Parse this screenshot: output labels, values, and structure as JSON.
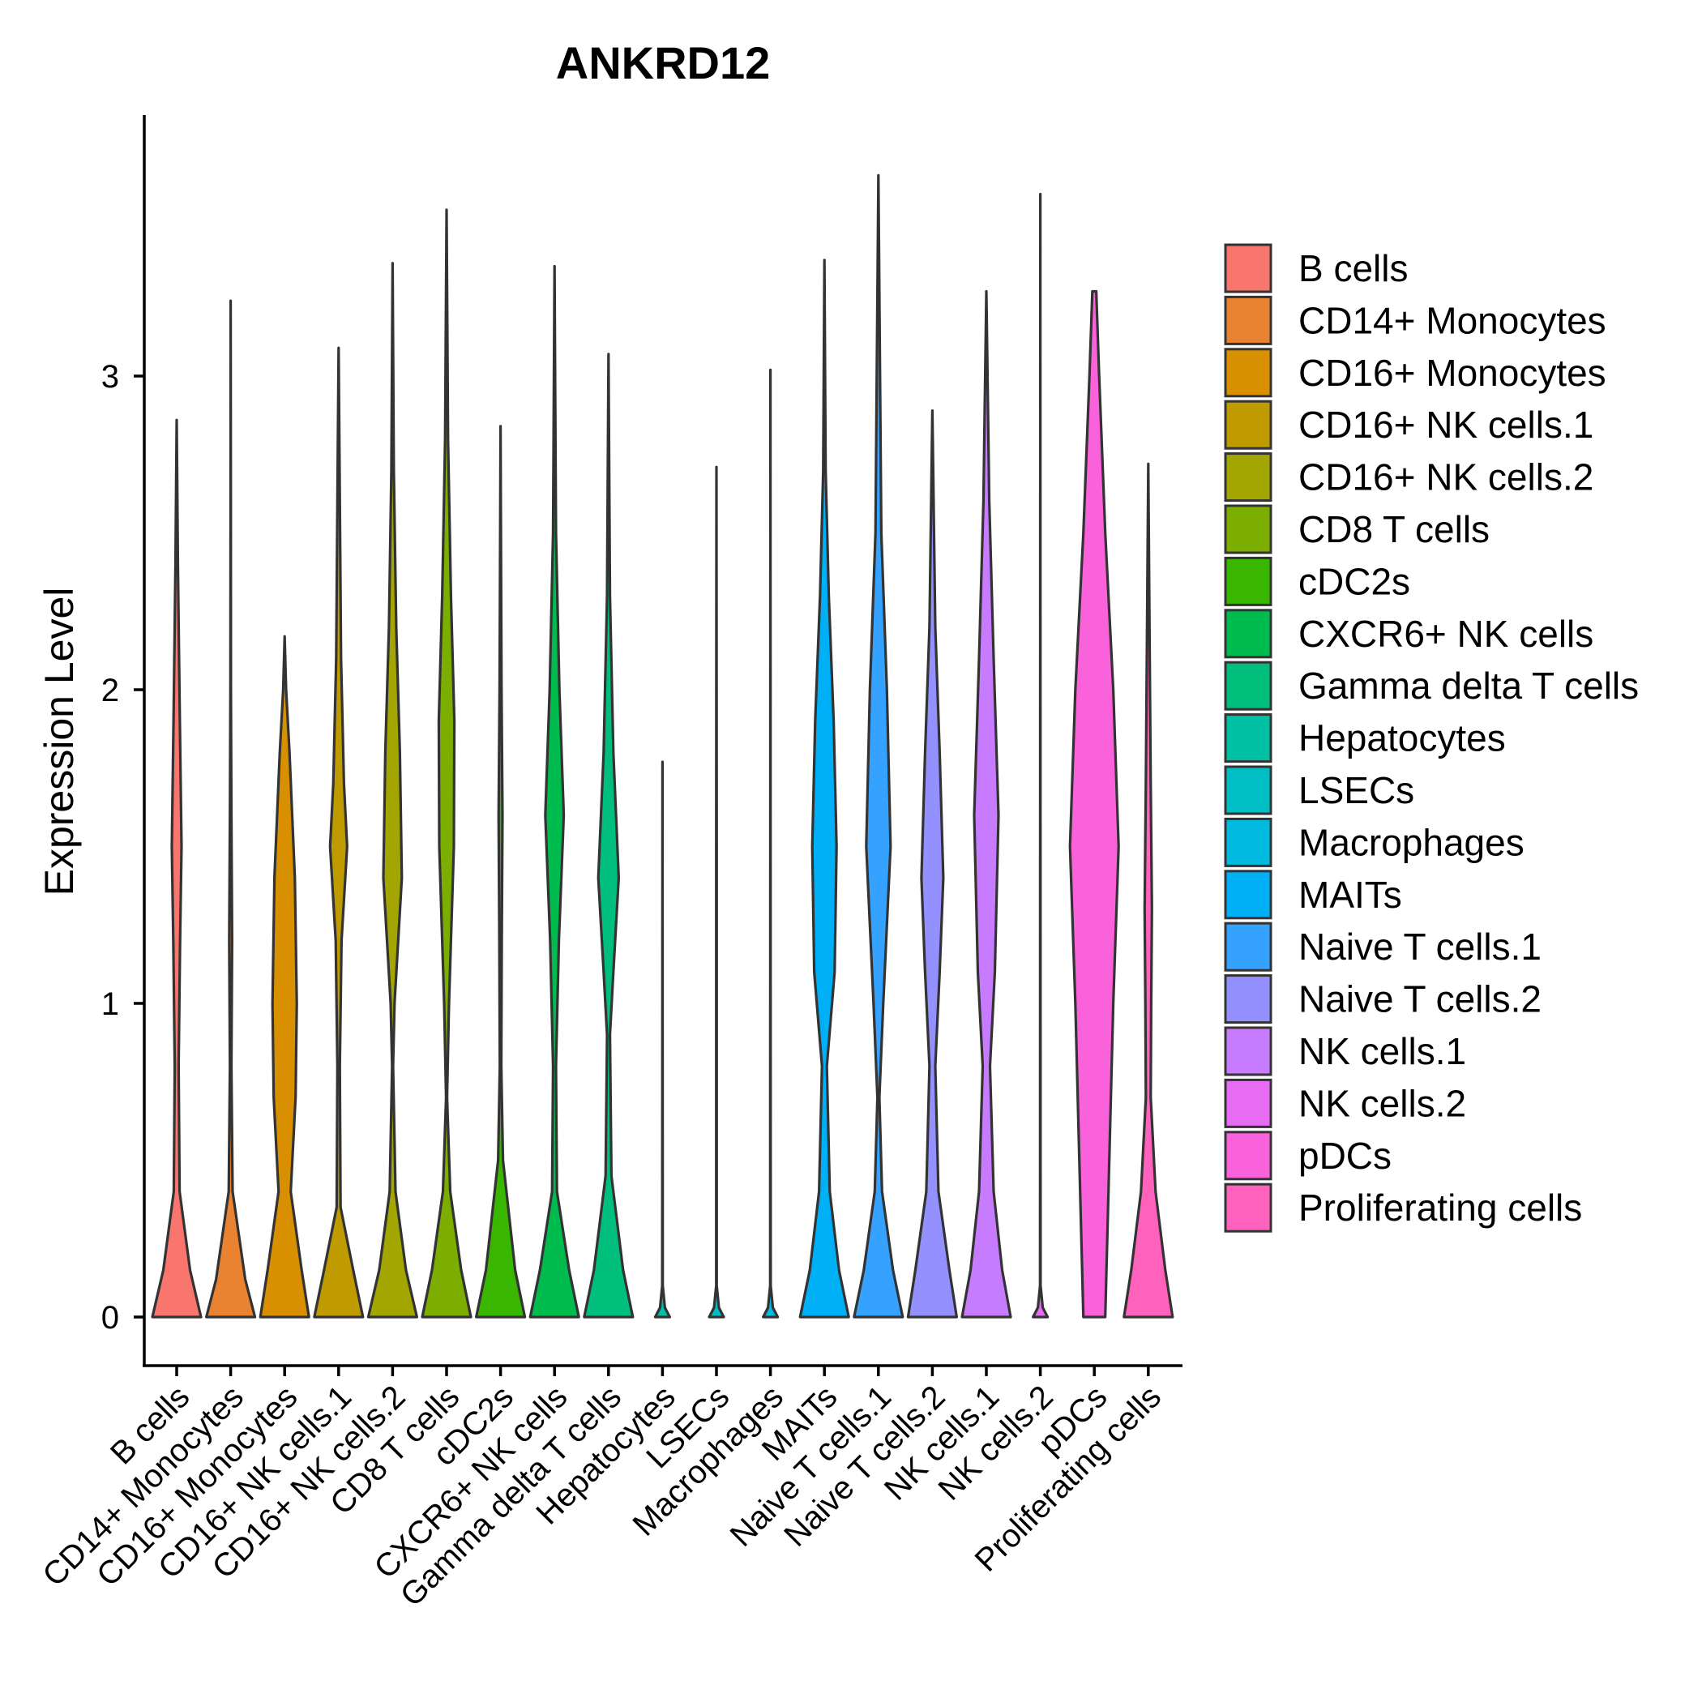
{
  "chart_data": {
    "type": "violin",
    "title": "ANKRD12",
    "xlabel": "",
    "ylabel": "Expression Level",
    "ylim": [
      -0.18,
      3.8
    ],
    "yticks": [
      0,
      1,
      2,
      3
    ],
    "legend_position": "right",
    "categories": [
      "B cells",
      "CD14+ Monocytes",
      "CD16+ Monocytes",
      "CD16+ NK cells.1",
      "CD16+ NK cells.2",
      "CD8 T cells",
      "cDC2s",
      "CXCR6+ NK cells",
      "Gamma delta T cells",
      "Hepatocytes",
      "LSECs",
      "Macrophages",
      "MAITs",
      "Naive T cells.1",
      "Naive T cells.2",
      "NK cells.1",
      "NK cells.2",
      "pDCs",
      "Proliferating cells"
    ],
    "colors": [
      "#F8766D",
      "#EA8331",
      "#D89000",
      "#C09B00",
      "#A3A500",
      "#7CAE00",
      "#39B600",
      "#00BB4E",
      "#00BF7D",
      "#00C1A3",
      "#00BFC4",
      "#00BAE0",
      "#00B0F6",
      "#35A2FF",
      "#9590FF",
      "#C77CFF",
      "#E76BF3",
      "#FA62DB",
      "#FF62BC"
    ],
    "max_values": [
      2.86,
      3.24,
      2.17,
      3.09,
      3.36,
      3.53,
      2.84,
      3.35,
      3.07,
      1.77,
      2.71,
      3.02,
      3.37,
      3.64,
      2.89,
      3.27,
      3.58,
      3.27,
      2.72
    ],
    "densities": [
      [
        [
          0,
          1
        ],
        [
          0.15,
          0.55
        ],
        [
          0.4,
          0.12
        ],
        [
          0.8,
          0.08
        ],
        [
          1.2,
          0.14
        ],
        [
          1.5,
          0.2
        ],
        [
          1.9,
          0.13
        ],
        [
          2.4,
          0.05
        ],
        [
          2.86,
          0
        ]
      ],
      [
        [
          0,
          1
        ],
        [
          0.12,
          0.6
        ],
        [
          0.4,
          0.08
        ],
        [
          0.8,
          0.03
        ],
        [
          1.2,
          0.06
        ],
        [
          1.6,
          0.03
        ],
        [
          2.0,
          0.01
        ],
        [
          2.6,
          0.005
        ],
        [
          3.24,
          0
        ]
      ],
      [
        [
          0,
          1
        ],
        [
          0.15,
          0.7
        ],
        [
          0.4,
          0.25
        ],
        [
          0.7,
          0.45
        ],
        [
          1.0,
          0.5
        ],
        [
          1.4,
          0.42
        ],
        [
          1.8,
          0.2
        ],
        [
          2.0,
          0.06
        ],
        [
          2.17,
          0
        ]
      ],
      [
        [
          0,
          1
        ],
        [
          0.15,
          0.6
        ],
        [
          0.35,
          0.08
        ],
        [
          0.8,
          0.05
        ],
        [
          1.2,
          0.12
        ],
        [
          1.5,
          0.35
        ],
        [
          1.7,
          0.22
        ],
        [
          2.1,
          0.1
        ],
        [
          2.6,
          0.05
        ],
        [
          3.09,
          0
        ]
      ],
      [
        [
          0,
          1
        ],
        [
          0.15,
          0.55
        ],
        [
          0.4,
          0.12
        ],
        [
          0.8,
          0.02
        ],
        [
          1.0,
          0.08
        ],
        [
          1.4,
          0.38
        ],
        [
          1.8,
          0.3
        ],
        [
          2.2,
          0.15
        ],
        [
          2.7,
          0.05
        ],
        [
          3.36,
          0
        ]
      ],
      [
        [
          0,
          1
        ],
        [
          0.15,
          0.6
        ],
        [
          0.4,
          0.15
        ],
        [
          0.7,
          0.02
        ],
        [
          1.0,
          0.1
        ],
        [
          1.5,
          0.3
        ],
        [
          1.9,
          0.32
        ],
        [
          2.3,
          0.18
        ],
        [
          2.8,
          0.06
        ],
        [
          3.53,
          0
        ]
      ],
      [
        [
          0,
          1
        ],
        [
          0.15,
          0.6
        ],
        [
          0.5,
          0.1
        ],
        [
          0.8,
          0.03
        ],
        [
          1.2,
          0.05
        ],
        [
          1.6,
          0.08
        ],
        [
          2.0,
          0.04
        ],
        [
          2.4,
          0.02
        ],
        [
          2.84,
          0
        ]
      ],
      [
        [
          0,
          1
        ],
        [
          0.15,
          0.6
        ],
        [
          0.4,
          0.1
        ],
        [
          0.8,
          0.06
        ],
        [
          1.2,
          0.18
        ],
        [
          1.6,
          0.38
        ],
        [
          2.0,
          0.2
        ],
        [
          2.5,
          0.06
        ],
        [
          3.35,
          0
        ]
      ],
      [
        [
          0,
          1
        ],
        [
          0.15,
          0.6
        ],
        [
          0.45,
          0.12
        ],
        [
          0.9,
          0.06
        ],
        [
          1.1,
          0.2
        ],
        [
          1.4,
          0.42
        ],
        [
          1.8,
          0.2
        ],
        [
          2.3,
          0.06
        ],
        [
          3.07,
          0
        ]
      ],
      [
        [
          0,
          0.3
        ],
        [
          0.03,
          0.1
        ],
        [
          0.1,
          0.01
        ],
        [
          1.77,
          0
        ]
      ],
      [
        [
          0,
          0.3
        ],
        [
          0.03,
          0.1
        ],
        [
          0.1,
          0.01
        ],
        [
          1.5,
          0.01
        ],
        [
          2.71,
          0
        ]
      ],
      [
        [
          0,
          0.3
        ],
        [
          0.03,
          0.1
        ],
        [
          0.1,
          0.01
        ],
        [
          3.02,
          0
        ]
      ],
      [
        [
          0,
          1
        ],
        [
          0.15,
          0.6
        ],
        [
          0.4,
          0.22
        ],
        [
          0.8,
          0.1
        ],
        [
          1.1,
          0.42
        ],
        [
          1.5,
          0.5
        ],
        [
          1.9,
          0.38
        ],
        [
          2.3,
          0.18
        ],
        [
          2.7,
          0.05
        ],
        [
          3.37,
          0
        ]
      ],
      [
        [
          0,
          1
        ],
        [
          0.15,
          0.6
        ],
        [
          0.4,
          0.15
        ],
        [
          0.7,
          0.04
        ],
        [
          1.0,
          0.2
        ],
        [
          1.5,
          0.5
        ],
        [
          2.0,
          0.35
        ],
        [
          2.5,
          0.12
        ],
        [
          3.64,
          0
        ]
      ],
      [
        [
          0,
          1
        ],
        [
          0.15,
          0.7
        ],
        [
          0.4,
          0.25
        ],
        [
          0.8,
          0.12
        ],
        [
          1.1,
          0.3
        ],
        [
          1.4,
          0.45
        ],
        [
          1.8,
          0.3
        ],
        [
          2.2,
          0.12
        ],
        [
          2.89,
          0
        ]
      ],
      [
        [
          0,
          1
        ],
        [
          0.15,
          0.65
        ],
        [
          0.4,
          0.3
        ],
        [
          0.8,
          0.15
        ],
        [
          1.1,
          0.35
        ],
        [
          1.6,
          0.5
        ],
        [
          2.1,
          0.3
        ],
        [
          2.6,
          0.12
        ],
        [
          3.27,
          0
        ]
      ],
      [
        [
          0,
          0.3
        ],
        [
          0.03,
          0.1
        ],
        [
          0.1,
          0.01
        ],
        [
          3.58,
          0
        ]
      ],
      [
        [
          0,
          0.45
        ],
        [
          0.3,
          0.55
        ],
        [
          1.0,
          0.78
        ],
        [
          1.5,
          1.0
        ],
        [
          2.0,
          0.78
        ],
        [
          2.5,
          0.45
        ],
        [
          3.0,
          0.2
        ],
        [
          3.27,
          0.08
        ]
      ],
      [
        [
          0,
          1
        ],
        [
          0.15,
          0.7
        ],
        [
          0.4,
          0.3
        ],
        [
          0.7,
          0.1
        ],
        [
          1.0,
          0.12
        ],
        [
          1.3,
          0.15
        ],
        [
          1.7,
          0.1
        ],
        [
          2.2,
          0.05
        ],
        [
          2.72,
          0
        ]
      ]
    ]
  }
}
